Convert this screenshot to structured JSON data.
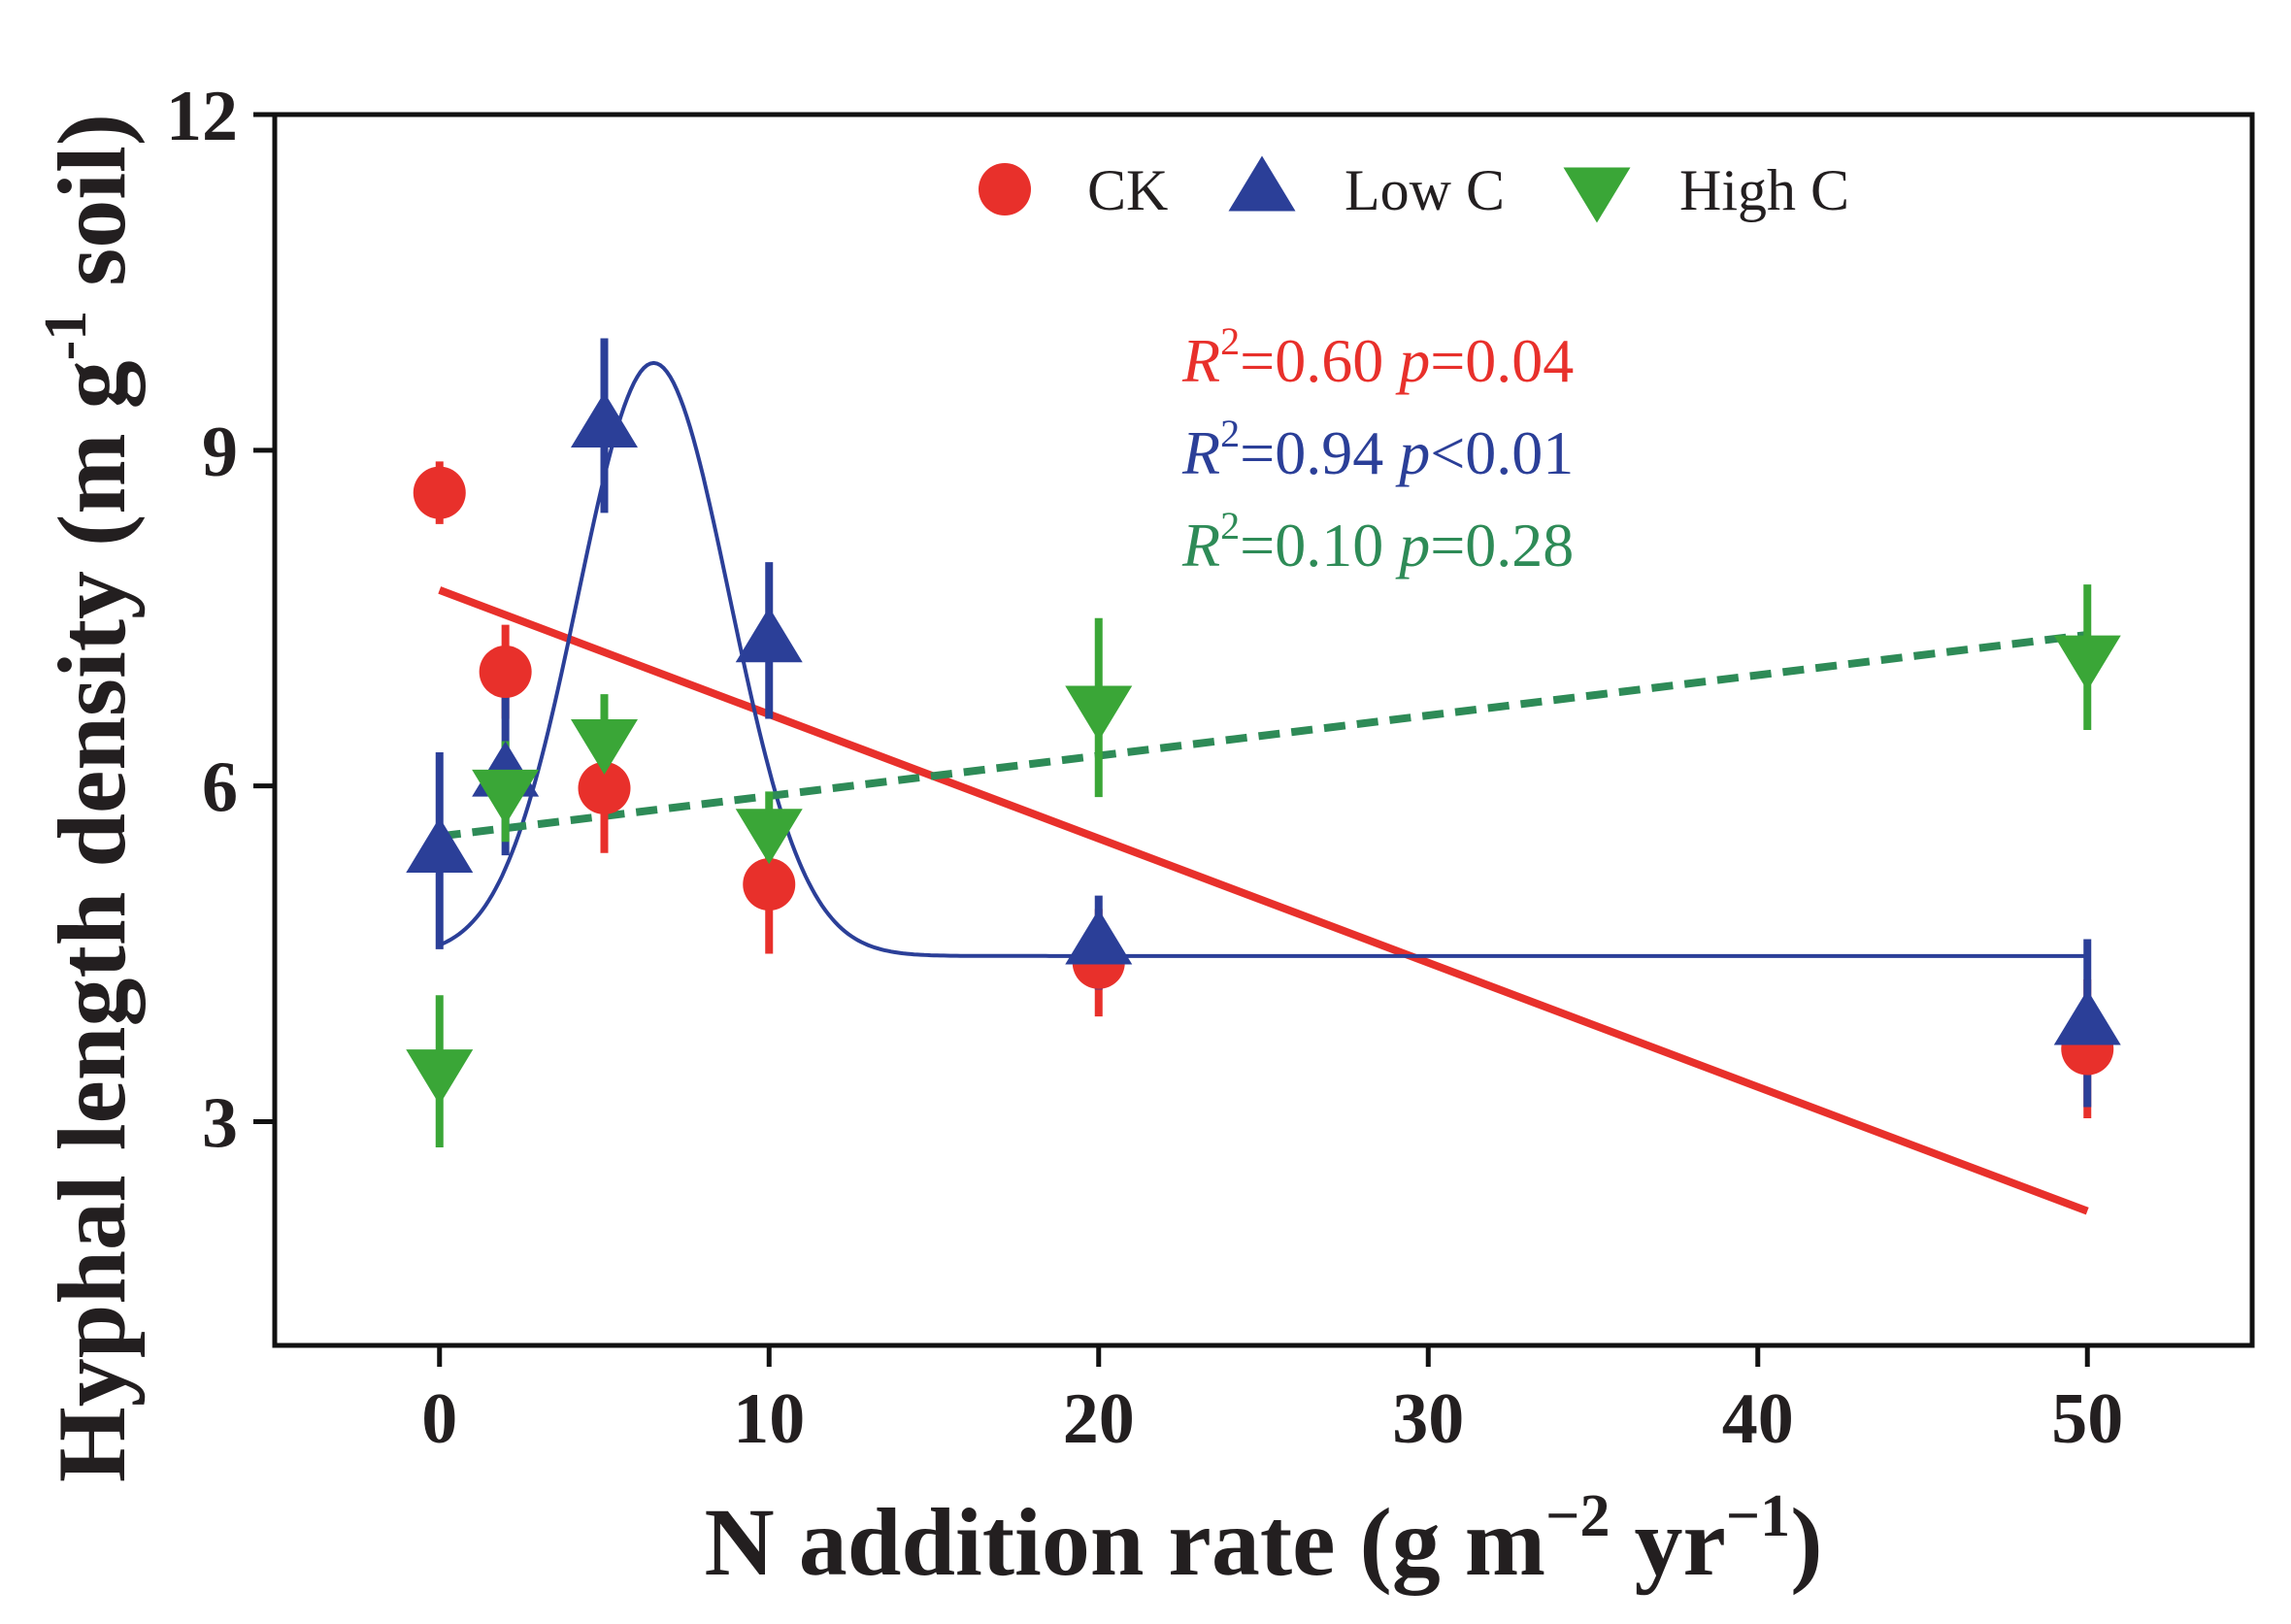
{
  "chart_data": {
    "type": "scatter",
    "xlabel": {
      "main": "N addition rate (g m",
      "sup1": "−2",
      "mid": " yr",
      "sup2": "−1",
      "end": ")"
    },
    "ylabel": {
      "main": "Hyphal length density (m g",
      "sup": "-1",
      "end": " soil)"
    },
    "xlim": [
      -5,
      55
    ],
    "ylim": [
      1,
      12
    ],
    "xticks": [
      0,
      10,
      20,
      30,
      40,
      50
    ],
    "yticks": [
      3,
      6,
      9,
      12
    ],
    "xtick_labels": [
      "0",
      "10",
      "20",
      "30",
      "40",
      "50"
    ],
    "ytick_labels": [
      "3",
      "6",
      "9",
      "12"
    ],
    "legend_position": "top-center",
    "series": [
      {
        "name": "CK",
        "color": "#e8302b",
        "marker": "circle",
        "points": [
          {
            "x": 0,
            "y": 8.62,
            "err": 0.28
          },
          {
            "x": 2,
            "y": 7.02,
            "err": 0.42
          },
          {
            "x": 5,
            "y": 5.98,
            "err": 0.58
          },
          {
            "x": 10,
            "y": 5.12,
            "err": 0.62
          },
          {
            "x": 20,
            "y": 4.42,
            "err": 0.48
          },
          {
            "x": 50,
            "y": 3.65,
            "err": 0.62
          }
        ],
        "fit": {
          "kind": "linear",
          "x": [
            0,
            50
          ],
          "y": [
            7.75,
            2.2
          ],
          "style": "solid"
        }
      },
      {
        "name": "Low C",
        "color": "#2b3f98",
        "marker": "triangle-up",
        "points": [
          {
            "x": 0,
            "y": 5.42,
            "err": 0.88
          },
          {
            "x": 2,
            "y": 6.1,
            "err": 0.72
          },
          {
            "x": 5,
            "y": 9.22,
            "err": 0.78
          },
          {
            "x": 10,
            "y": 7.3,
            "err": 0.7
          },
          {
            "x": 20,
            "y": 4.6,
            "err": 0.42
          },
          {
            "x": 50,
            "y": 3.88,
            "err": 0.75
          }
        ],
        "fit": {
          "kind": "gaussian",
          "baseline": 4.48,
          "amplitude": 5.3,
          "center": 6.5,
          "width": 2.3,
          "x_range": [
            0,
            50
          ],
          "style": "solid"
        }
      },
      {
        "name": "High C",
        "color": "#3aa637",
        "marker": "triangle-down",
        "points": [
          {
            "x": 0,
            "y": 3.45,
            "err": 0.68
          },
          {
            "x": 2,
            "y": 5.95,
            "err": 0.45
          },
          {
            "x": 5,
            "y": 6.4,
            "err": 0.42
          },
          {
            "x": 10,
            "y": 5.6,
            "err": 0.35
          },
          {
            "x": 20,
            "y": 6.7,
            "err": 0.8
          },
          {
            "x": 50,
            "y": 7.15,
            "err": 0.65
          }
        ],
        "fit": {
          "kind": "linear",
          "x": [
            0,
            50
          ],
          "y": [
            5.55,
            7.35
          ],
          "style": "dashed",
          "color": "#2e8b57"
        }
      }
    ],
    "annotations": [
      {
        "r_label": "R",
        "sup": "2",
        "r_value": "=0.60 ",
        "p_label": "p",
        "p_value": "=0.04",
        "color": "#e8302b"
      },
      {
        "r_label": "R",
        "sup": "2",
        "r_value": "=0.94 ",
        "p_label": "p",
        "p_value": "<0.01",
        "color": "#2b3f98"
      },
      {
        "r_label": "R",
        "sup": "2",
        "r_value": "=0.10 ",
        "p_label": "p",
        "p_value": "=0.28",
        "color": "#2e8b57"
      }
    ]
  }
}
